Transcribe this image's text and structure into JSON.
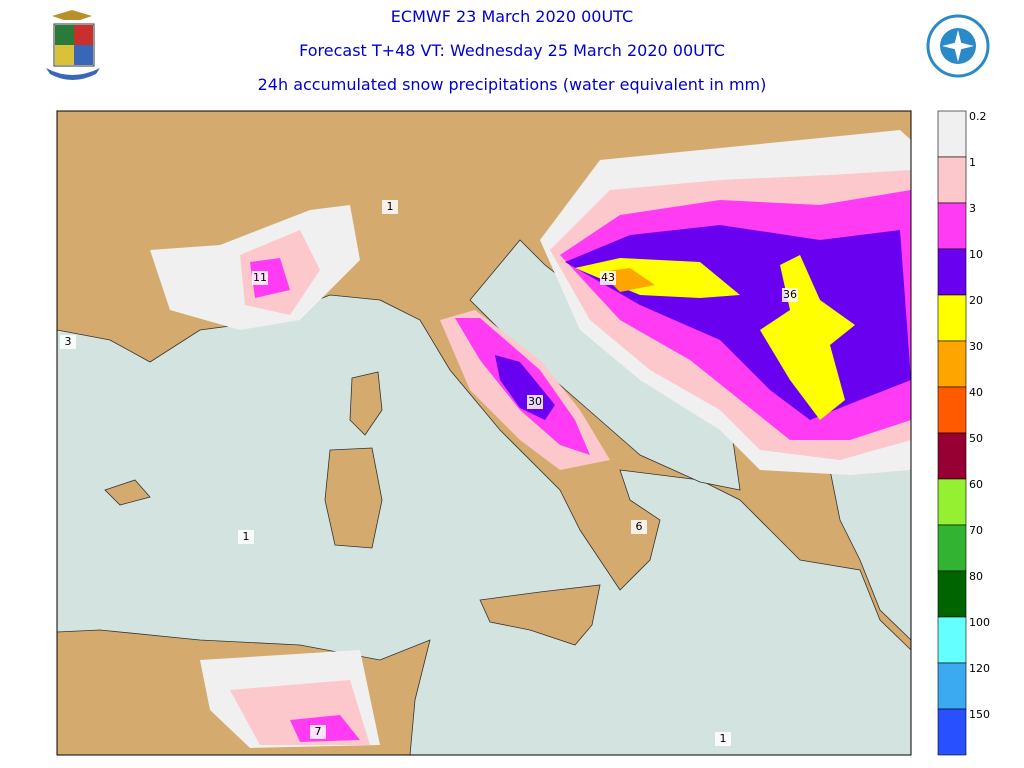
{
  "header": {
    "title": "ECMWF 23 March 2020 00UTC",
    "subtitle": "Forecast T+48 VT: Wednesday 25 March 2020 00UTC",
    "description": "24h accumulated snow precipitations (water equivalent in mm)"
  },
  "legend": [
    {
      "label": "0.2",
      "color": "#f0f0f0"
    },
    {
      "label": "1",
      "color": "#fcc8cc"
    },
    {
      "label": "3",
      "color": "#ff3cf4"
    },
    {
      "label": "10",
      "color": "#6a00f0"
    },
    {
      "label": "20",
      "color": "#ffff00"
    },
    {
      "label": "30",
      "color": "#ffa500"
    },
    {
      "label": "40",
      "color": "#ff5a00"
    },
    {
      "label": "50",
      "color": "#960032"
    },
    {
      "label": "60",
      "color": "#96f032"
    },
    {
      "label": "70",
      "color": "#32b432"
    },
    {
      "label": "80",
      "color": "#006400"
    },
    {
      "label": "100",
      "color": "#64ffff"
    },
    {
      "label": "120",
      "color": "#3caaf0"
    },
    {
      "label": "150",
      "color": "#2850ff"
    }
  ],
  "map_labels": [
    1,
    11,
    3,
    43,
    36,
    30,
    6,
    1,
    7,
    1
  ]
}
